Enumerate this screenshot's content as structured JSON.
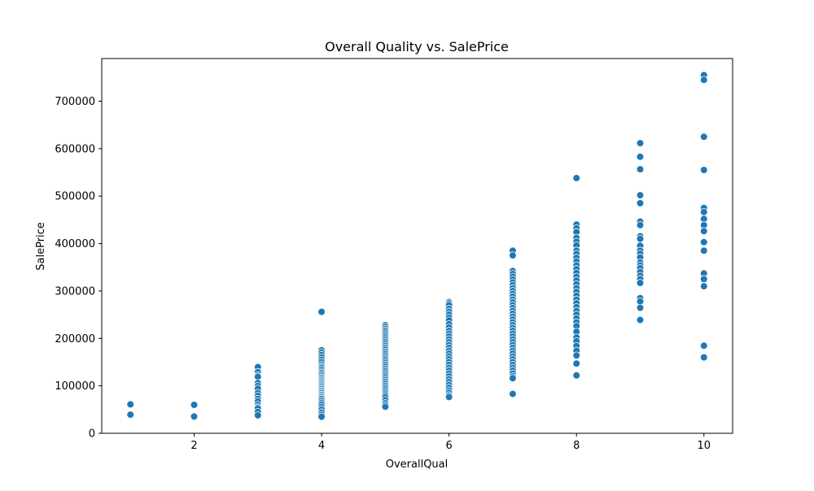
{
  "chart_data": {
    "type": "scatter",
    "title": "Overall Quality vs. SalePrice",
    "xlabel": "OverallQual",
    "ylabel": "SalePrice",
    "xlim": [
      0.55,
      10.45
    ],
    "ylim": [
      0,
      790000
    ],
    "xticks": [
      2,
      4,
      6,
      8,
      10
    ],
    "xtick_labels": [
      "2",
      "4",
      "6",
      "8",
      "10"
    ],
    "yticks": [
      0,
      100000,
      200000,
      300000,
      400000,
      500000,
      600000,
      700000
    ],
    "ytick_labels": [
      "0",
      "100000",
      "200000",
      "300000",
      "400000",
      "500000",
      "600000",
      "700000"
    ],
    "grid": false,
    "marker_color": "#1f77b4",
    "series": [
      {
        "points": [
          [
            1,
            61000
          ],
          [
            1,
            39300
          ],
          [
            2,
            60000
          ],
          [
            2,
            35311
          ],
          [
            3,
            139600
          ],
          [
            3,
            129000
          ],
          [
            3,
            122000
          ],
          [
            3,
            119000
          ],
          [
            3,
            106000
          ],
          [
            3,
            100000
          ],
          [
            3,
            94000
          ],
          [
            3,
            85000
          ],
          [
            3,
            79000
          ],
          [
            3,
            72500
          ],
          [
            3,
            67000
          ],
          [
            3,
            60000
          ],
          [
            3,
            55000
          ],
          [
            3,
            52500
          ],
          [
            3,
            45000
          ],
          [
            3,
            37900
          ],
          [
            4,
            256000
          ],
          [
            4,
            175000
          ],
          [
            4,
            170000
          ],
          [
            4,
            165000
          ],
          [
            4,
            160000
          ],
          [
            4,
            155000
          ],
          [
            4,
            150000
          ],
          [
            4,
            145000
          ],
          [
            4,
            141000
          ],
          [
            4,
            138000
          ],
          [
            4,
            134000
          ],
          [
            4,
            130000
          ],
          [
            4,
            127000
          ],
          [
            4,
            124000
          ],
          [
            4,
            120000
          ],
          [
            4,
            117000
          ],
          [
            4,
            114000
          ],
          [
            4,
            111000
          ],
          [
            4,
            108000
          ],
          [
            4,
            105000
          ],
          [
            4,
            102000
          ],
          [
            4,
            99000
          ],
          [
            4,
            96000
          ],
          [
            4,
            93000
          ],
          [
            4,
            90000
          ],
          [
            4,
            87000
          ],
          [
            4,
            84000
          ],
          [
            4,
            81000
          ],
          [
            4,
            78000
          ],
          [
            4,
            75000
          ],
          [
            4,
            72000
          ],
          [
            4,
            68000
          ],
          [
            4,
            64000
          ],
          [
            4,
            60000
          ],
          [
            4,
            55000
          ],
          [
            4,
            50000
          ],
          [
            4,
            44000
          ],
          [
            4,
            39000
          ],
          [
            4,
            34900
          ],
          [
            5,
            228000
          ],
          [
            5,
            224000
          ],
          [
            5,
            220000
          ],
          [
            5,
            216000
          ],
          [
            5,
            212000
          ],
          [
            5,
            208000
          ],
          [
            5,
            204000
          ],
          [
            5,
            200000
          ],
          [
            5,
            196000
          ],
          [
            5,
            192000
          ],
          [
            5,
            188000
          ],
          [
            5,
            184000
          ],
          [
            5,
            180000
          ],
          [
            5,
            176000
          ],
          [
            5,
            172000
          ],
          [
            5,
            168000
          ],
          [
            5,
            164000
          ],
          [
            5,
            160000
          ],
          [
            5,
            156000
          ],
          [
            5,
            152000
          ],
          [
            5,
            148000
          ],
          [
            5,
            144000
          ],
          [
            5,
            140000
          ],
          [
            5,
            136000
          ],
          [
            5,
            132000
          ],
          [
            5,
            128000
          ],
          [
            5,
            124000
          ],
          [
            5,
            120000
          ],
          [
            5,
            116000
          ],
          [
            5,
            112000
          ],
          [
            5,
            108000
          ],
          [
            5,
            104000
          ],
          [
            5,
            100000
          ],
          [
            5,
            96000
          ],
          [
            5,
            92000
          ],
          [
            5,
            88000
          ],
          [
            5,
            84000
          ],
          [
            5,
            80000
          ],
          [
            5,
            76000
          ],
          [
            5,
            70000
          ],
          [
            5,
            64000
          ],
          [
            5,
            60000
          ],
          [
            5,
            55993
          ],
          [
            6,
            277000
          ],
          [
            6,
            274000
          ],
          [
            6,
            270000
          ],
          [
            6,
            262000
          ],
          [
            6,
            256000
          ],
          [
            6,
            250000
          ],
          [
            6,
            244000
          ],
          [
            6,
            238000
          ],
          [
            6,
            230000
          ],
          [
            6,
            223000
          ],
          [
            6,
            216000
          ],
          [
            6,
            210000
          ],
          [
            6,
            204000
          ],
          [
            6,
            198000
          ],
          [
            6,
            192000
          ],
          [
            6,
            186000
          ],
          [
            6,
            180000
          ],
          [
            6,
            174000
          ],
          [
            6,
            168000
          ],
          [
            6,
            162000
          ],
          [
            6,
            156000
          ],
          [
            6,
            150000
          ],
          [
            6,
            144000
          ],
          [
            6,
            138000
          ],
          [
            6,
            132000
          ],
          [
            6,
            126000
          ],
          [
            6,
            120000
          ],
          [
            6,
            114000
          ],
          [
            6,
            108000
          ],
          [
            6,
            102000
          ],
          [
            6,
            96000
          ],
          [
            6,
            90000
          ],
          [
            6,
            85000
          ],
          [
            6,
            80000
          ],
          [
            6,
            76500
          ],
          [
            7,
            385000
          ],
          [
            7,
            375000
          ],
          [
            7,
            342000
          ],
          [
            7,
            336000
          ],
          [
            7,
            330000
          ],
          [
            7,
            324000
          ],
          [
            7,
            318000
          ],
          [
            7,
            312000
          ],
          [
            7,
            306000
          ],
          [
            7,
            300000
          ],
          [
            7,
            294000
          ],
          [
            7,
            288000
          ],
          [
            7,
            282000
          ],
          [
            7,
            276000
          ],
          [
            7,
            270000
          ],
          [
            7,
            264000
          ],
          [
            7,
            258000
          ],
          [
            7,
            252000
          ],
          [
            7,
            246000
          ],
          [
            7,
            240000
          ],
          [
            7,
            234000
          ],
          [
            7,
            228000
          ],
          [
            7,
            222000
          ],
          [
            7,
            216000
          ],
          [
            7,
            210000
          ],
          [
            7,
            204000
          ],
          [
            7,
            198000
          ],
          [
            7,
            192000
          ],
          [
            7,
            186000
          ],
          [
            7,
            180000
          ],
          [
            7,
            174000
          ],
          [
            7,
            168000
          ],
          [
            7,
            162000
          ],
          [
            7,
            156000
          ],
          [
            7,
            150000
          ],
          [
            7,
            144000
          ],
          [
            7,
            138000
          ],
          [
            7,
            132000
          ],
          [
            7,
            126000
          ],
          [
            7,
            120000
          ],
          [
            7,
            116000
          ],
          [
            7,
            83000
          ],
          [
            8,
            538000
          ],
          [
            8,
            440000
          ],
          [
            8,
            432000
          ],
          [
            8,
            424000
          ],
          [
            8,
            412000
          ],
          [
            8,
            404000
          ],
          [
            8,
            396000
          ],
          [
            8,
            385000
          ],
          [
            8,
            378000
          ],
          [
            8,
            370000
          ],
          [
            8,
            362000
          ],
          [
            8,
            354000
          ],
          [
            8,
            346000
          ],
          [
            8,
            338000
          ],
          [
            8,
            330000
          ],
          [
            8,
            322000
          ],
          [
            8,
            314000
          ],
          [
            8,
            306000
          ],
          [
            8,
            298000
          ],
          [
            8,
            290000
          ],
          [
            8,
            282000
          ],
          [
            8,
            274000
          ],
          [
            8,
            266000
          ],
          [
            8,
            258000
          ],
          [
            8,
            250000
          ],
          [
            8,
            242000
          ],
          [
            8,
            234000
          ],
          [
            8,
            226000
          ],
          [
            8,
            214000
          ],
          [
            8,
            202000
          ],
          [
            8,
            194000
          ],
          [
            8,
            184000
          ],
          [
            8,
            174000
          ],
          [
            8,
            164000
          ],
          [
            8,
            147000
          ],
          [
            8,
            122000
          ],
          [
            9,
            611657
          ],
          [
            9,
            582933
          ],
          [
            9,
            556581
          ],
          [
            9,
            501837
          ],
          [
            9,
            485000
          ],
          [
            9,
            446261
          ],
          [
            9,
            438780
          ],
          [
            9,
            415298
          ],
          [
            9,
            410000
          ],
          [
            9,
            395192
          ],
          [
            9,
            385000
          ],
          [
            9,
            378500
          ],
          [
            9,
            370878
          ],
          [
            9,
            360000
          ],
          [
            9,
            354000
          ],
          [
            9,
            348000
          ],
          [
            9,
            340000
          ],
          [
            9,
            332000
          ],
          [
            9,
            325000
          ],
          [
            9,
            317000
          ],
          [
            9,
            285000
          ],
          [
            9,
            278000
          ],
          [
            9,
            264561
          ],
          [
            9,
            239000
          ],
          [
            10,
            755000
          ],
          [
            10,
            745000
          ],
          [
            10,
            625000
          ],
          [
            10,
            555000
          ],
          [
            10,
            475000
          ],
          [
            10,
            466500
          ],
          [
            10,
            451950
          ],
          [
            10,
            438780
          ],
          [
            10,
            426000
          ],
          [
            10,
            403000
          ],
          [
            10,
            385000
          ],
          [
            10,
            337000
          ],
          [
            10,
            325000
          ],
          [
            10,
            310000
          ],
          [
            10,
            184750
          ],
          [
            10,
            160000
          ]
        ]
      }
    ]
  }
}
